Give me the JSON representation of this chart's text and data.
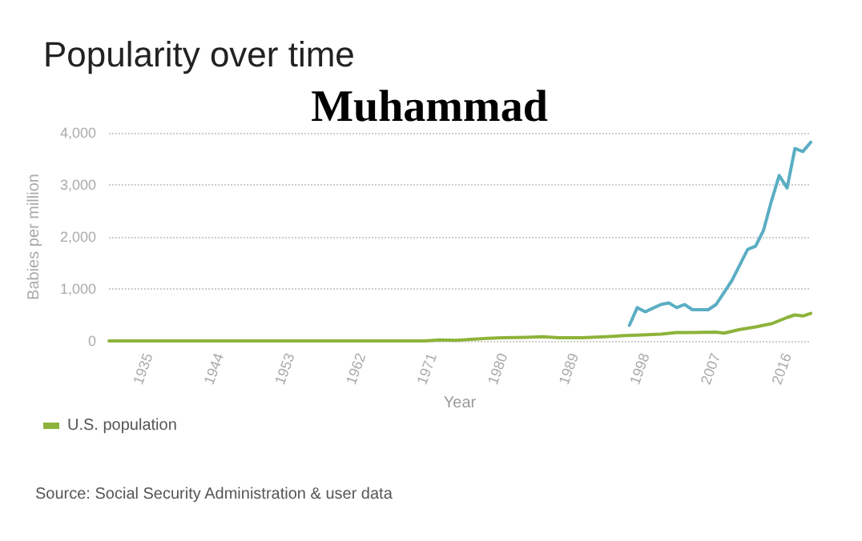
{
  "chart_data": {
    "type": "line",
    "title": "Popularity over time",
    "subtitle": "Muhammad",
    "xlabel": "Year",
    "ylabel": "Babies per million",
    "xlim": [
      1930,
      2019
    ],
    "xticks": [
      1935,
      1944,
      1953,
      1962,
      1971,
      1980,
      1989,
      1998,
      2007,
      2016
    ],
    "ylim": [
      0,
      4000
    ],
    "yticks": [
      {
        "value": 0,
        "label": "0"
      },
      {
        "value": 1000,
        "label": "1,000"
      },
      {
        "value": 2000,
        "label": "2,000"
      },
      {
        "value": 3000,
        "label": "3,000"
      },
      {
        "value": 4000,
        "label": "4,000"
      }
    ],
    "grid": "y",
    "legend": "bottom left",
    "marker": "none",
    "line_style": "solid",
    "series": [
      {
        "name": "U.S. population",
        "color": "#8db33a",
        "x": [
          1930,
          1940,
          1950,
          1960,
          1970,
          1972,
          1974,
          1976,
          1978,
          1980,
          1983,
          1985,
          1987,
          1990,
          1993,
          1995,
          1997,
          2000,
          2002,
          2004,
          2007,
          2008,
          2010,
          2012,
          2014,
          2016,
          2017,
          2018,
          2019
        ],
        "values": [
          0,
          0,
          0,
          0,
          0,
          20,
          10,
          30,
          50,
          60,
          70,
          80,
          60,
          60,
          80,
          100,
          110,
          130,
          160,
          160,
          170,
          150,
          220,
          270,
          330,
          450,
          500,
          480,
          530
        ]
      },
      {
        "color": "#5aaec4",
        "x": [
          1996,
          1997,
          1998,
          2000,
          2001,
          2002,
          2003,
          2004,
          2006,
          2007,
          2009,
          2010,
          2011,
          2012,
          2013,
          2014,
          2015,
          2016,
          2017,
          2018,
          2019
        ],
        "values": [
          300,
          640,
          560,
          700,
          730,
          640,
          700,
          600,
          600,
          700,
          1160,
          1460,
          1760,
          1820,
          2120,
          2680,
          3180,
          2940,
          3700,
          3640,
          3820
        ]
      }
    ],
    "annotations": [
      "Source: Social Security Administration & user data"
    ]
  }
}
